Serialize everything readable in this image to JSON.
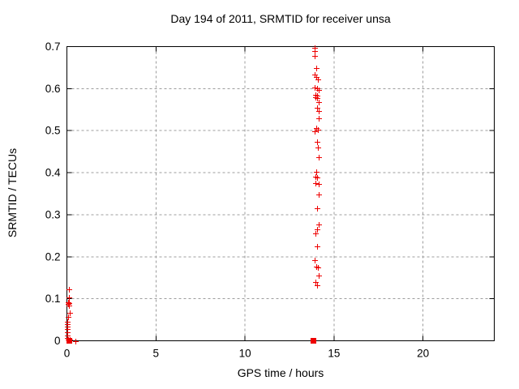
{
  "window": {
    "background": "#ffffff"
  },
  "chart_data": {
    "type": "scatter",
    "title": "Day 194 of 2011, SRMTID for receiver unsa",
    "xlabel": "GPS time / hours",
    "ylabel": "SRMTID / TECUs",
    "xlim": [
      0,
      24
    ],
    "ylim": [
      0,
      0.7
    ],
    "xtick_values": [
      0,
      5,
      10,
      15,
      20
    ],
    "xtick_labels": [
      "0",
      "5",
      "10",
      "15",
      "20"
    ],
    "ytick_values": [
      0,
      0.1,
      0.2,
      0.3,
      0.4,
      0.5,
      0.6,
      0.7
    ],
    "ytick_labels": [
      "0",
      "0.1",
      "0.2",
      "0.3",
      "0.4",
      "0.5",
      "0.6",
      "0.7"
    ],
    "grid": {
      "show": true,
      "style": "dashed",
      "color": "#9c9c9c"
    },
    "legend": null,
    "axis_color": "#000000",
    "text_color": "#000000",
    "marker_color": "#ee0000",
    "series": [
      {
        "name": "SRMTID",
        "marker": "plus",
        "color": "#ee0000",
        "points": [
          [
            0.1,
            0.122
          ],
          [
            0.1,
            0.104
          ],
          [
            0.06,
            0.092
          ],
          [
            0.12,
            0.09
          ],
          [
            0.08,
            0.088
          ],
          [
            0.1,
            0.083
          ],
          [
            0.18,
            0.066
          ],
          [
            0.06,
            0.056
          ],
          [
            0.03,
            0.046
          ],
          [
            0.03,
            0.04
          ],
          [
            0.03,
            0.033
          ],
          [
            0.03,
            0.027
          ],
          [
            0.03,
            0.021
          ],
          [
            0.03,
            0.013
          ],
          [
            0.03,
            0.006
          ],
          [
            0.08,
            0.003
          ],
          [
            0.16,
            0.002
          ],
          [
            0.5,
            0.0
          ],
          [
            13.92,
            0.698
          ],
          [
            13.92,
            0.69
          ],
          [
            13.92,
            0.677
          ],
          [
            14.0,
            0.648
          ],
          [
            13.92,
            0.634
          ],
          [
            14.0,
            0.627
          ],
          [
            14.1,
            0.622
          ],
          [
            13.92,
            0.603
          ],
          [
            14.05,
            0.6
          ],
          [
            14.15,
            0.596
          ],
          [
            13.96,
            0.586
          ],
          [
            14.05,
            0.584
          ],
          [
            13.96,
            0.58
          ],
          [
            14.05,
            0.577
          ],
          [
            14.15,
            0.567
          ],
          [
            14.05,
            0.555
          ],
          [
            14.15,
            0.546
          ],
          [
            14.15,
            0.53
          ],
          [
            14.0,
            0.507
          ],
          [
            14.1,
            0.503
          ],
          [
            13.92,
            0.499
          ],
          [
            14.05,
            0.474
          ],
          [
            14.1,
            0.459
          ],
          [
            14.15,
            0.436
          ],
          [
            14.0,
            0.403
          ],
          [
            13.96,
            0.391
          ],
          [
            14.05,
            0.388
          ],
          [
            13.96,
            0.376
          ],
          [
            14.15,
            0.374
          ],
          [
            14.15,
            0.349
          ],
          [
            14.05,
            0.316
          ],
          [
            14.15,
            0.276
          ],
          [
            14.05,
            0.266
          ],
          [
            13.96,
            0.256
          ],
          [
            14.05,
            0.224
          ],
          [
            13.92,
            0.191
          ],
          [
            14.0,
            0.177
          ],
          [
            14.1,
            0.174
          ],
          [
            14.15,
            0.156
          ],
          [
            13.96,
            0.139
          ],
          [
            14.05,
            0.133
          ]
        ]
      }
    ],
    "overplot_squares": {
      "marker": "filled-square",
      "color": "#ee0000",
      "size": 7,
      "points": [
        [
          0.12,
          0.0
        ],
        [
          13.83,
          0.0
        ]
      ]
    }
  }
}
